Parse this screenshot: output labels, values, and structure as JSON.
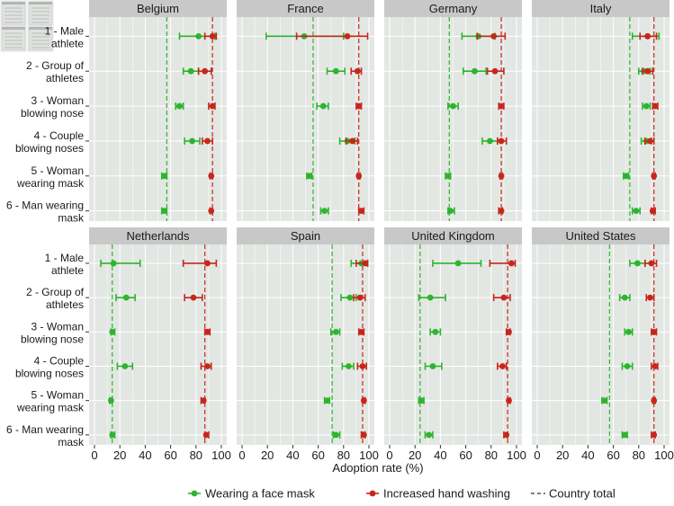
{
  "chart_data": {
    "type": "scatter",
    "title": "",
    "xlabel": "Adoption rate (%)",
    "ylabel": "",
    "xlim": [
      0,
      100
    ],
    "xticks": [
      0,
      20,
      40,
      60,
      80,
      100
    ],
    "categories": [
      "1 - Male athlete",
      "2 - Group of athletes",
      "3 - Woman blowing nose",
      "4 - Couple blowing noses",
      "5 - Woman wearing mask",
      "6 - Man wearing mask"
    ],
    "category_lines": [
      [
        "1 - Male",
        "athlete"
      ],
      [
        "2 - Group of",
        "athletes"
      ],
      [
        "3 - Woman",
        "blowing nose"
      ],
      [
        "4 - Couple",
        "blowing noses"
      ],
      [
        "5 - Woman",
        "wearing mask"
      ],
      [
        "6 - Man wearing",
        "mask"
      ]
    ],
    "legend": [
      {
        "label": "Wearing a face mask",
        "color": "#2db52d",
        "kind": "point"
      },
      {
        "label": "Increased hand washing",
        "color": "#c8261c",
        "kind": "point"
      },
      {
        "label": "Country total",
        "color": "#333333",
        "kind": "dashed"
      }
    ],
    "legend_position": "bottom",
    "colors": {
      "mask": "#2db52d",
      "hand": "#c8261c"
    },
    "panels": [
      {
        "country": "Belgium",
        "mask_total": 57,
        "hand_total": 93,
        "mask": [
          [
            82,
            67,
            95
          ],
          [
            76,
            70,
            82
          ],
          [
            67,
            64,
            70
          ],
          [
            77,
            71,
            83
          ],
          [
            55,
            53,
            57
          ],
          [
            55,
            53,
            57
          ]
        ],
        "hand": [
          [
            93,
            87,
            96
          ],
          [
            87,
            82,
            92
          ],
          [
            93,
            90,
            95
          ],
          [
            89,
            85,
            93
          ],
          [
            92,
            91,
            93
          ],
          [
            92,
            91,
            93
          ]
        ]
      },
      {
        "country": "France",
        "mask_total": 56,
        "hand_total": 92,
        "mask": [
          [
            49,
            19,
            80
          ],
          [
            74,
            67,
            81
          ],
          [
            64,
            59,
            68
          ],
          [
            83,
            77,
            89
          ],
          [
            53,
            51,
            55
          ],
          [
            65,
            62,
            68
          ]
        ],
        "hand": [
          [
            83,
            43,
            99
          ],
          [
            91,
            86,
            94
          ],
          [
            92,
            90,
            94
          ],
          [
            87,
            82,
            91
          ],
          [
            92,
            91,
            93
          ],
          [
            94,
            92,
            96
          ]
        ]
      },
      {
        "country": "Germany",
        "mask_total": 47,
        "hand_total": 88,
        "mask": [
          [
            70,
            57,
            83
          ],
          [
            67,
            58,
            76
          ],
          [
            50,
            46,
            54
          ],
          [
            79,
            73,
            85
          ],
          [
            46,
            44,
            48
          ],
          [
            48,
            46,
            51
          ]
        ],
        "hand": [
          [
            82,
            69,
            91
          ],
          [
            83,
            77,
            90
          ],
          [
            88,
            86,
            90
          ],
          [
            88,
            85,
            92
          ],
          [
            88,
            87,
            89
          ],
          [
            88,
            86,
            89
          ]
        ]
      },
      {
        "country": "Italy",
        "mask_total": 73,
        "hand_total": 92,
        "mask": [
          [
            87,
            75,
            96
          ],
          [
            84,
            80,
            89
          ],
          [
            86,
            83,
            89
          ],
          [
            86,
            82,
            90
          ],
          [
            70,
            68,
            72
          ],
          [
            78,
            75,
            81
          ]
        ],
        "hand": [
          [
            87,
            81,
            94
          ],
          [
            87,
            83,
            91
          ],
          [
            93,
            91,
            95
          ],
          [
            89,
            85,
            92
          ],
          [
            92,
            91,
            93
          ],
          [
            91,
            90,
            93
          ]
        ]
      },
      {
        "country": "Netherlands",
        "mask_total": 14,
        "hand_total": 87,
        "mask": [
          [
            15,
            5,
            36
          ],
          [
            25,
            17,
            32
          ],
          [
            14,
            13,
            16
          ],
          [
            24,
            18,
            30
          ],
          [
            13,
            12,
            14
          ],
          [
            14,
            13,
            16
          ]
        ],
        "hand": [
          [
            89,
            70,
            96
          ],
          [
            78,
            71,
            85
          ],
          [
            89,
            87,
            91
          ],
          [
            89,
            84,
            92
          ],
          [
            86,
            84,
            87
          ],
          [
            88,
            87,
            90
          ]
        ]
      },
      {
        "country": "Spain",
        "mask_total": 71,
        "hand_total": 95,
        "mask": [
          [
            94,
            86,
            99
          ],
          [
            85,
            78,
            90
          ],
          [
            74,
            70,
            77
          ],
          [
            84,
            79,
            88
          ],
          [
            67,
            65,
            69
          ],
          [
            74,
            72,
            77
          ]
        ],
        "hand": [
          [
            97,
            90,
            99
          ],
          [
            93,
            88,
            97
          ],
          [
            94,
            92,
            96
          ],
          [
            95,
            91,
            98
          ],
          [
            96,
            95,
            97
          ],
          [
            96,
            94,
            97
          ]
        ]
      },
      {
        "country": "United Kingdom",
        "mask_total": 24,
        "hand_total": 93,
        "mask": [
          [
            54,
            34,
            72
          ],
          [
            32,
            23,
            44
          ],
          [
            36,
            32,
            40
          ],
          [
            34,
            28,
            41
          ],
          [
            25,
            23,
            27
          ],
          [
            31,
            28,
            34
          ]
        ],
        "hand": [
          [
            96,
            79,
            99
          ],
          [
            90,
            82,
            95
          ],
          [
            94,
            92,
            95
          ],
          [
            89,
            85,
            92
          ],
          [
            94,
            93,
            95
          ],
          [
            92,
            90,
            93
          ]
        ]
      },
      {
        "country": "United States",
        "mask_total": 57,
        "hand_total": 92,
        "mask": [
          [
            79,
            73,
            85
          ],
          [
            69,
            65,
            73
          ],
          [
            72,
            69,
            75
          ],
          [
            71,
            67,
            75
          ],
          [
            53,
            51,
            55
          ],
          [
            69,
            67,
            71
          ]
        ],
        "hand": [
          [
            90,
            85,
            94
          ],
          [
            89,
            86,
            92
          ],
          [
            92,
            90,
            94
          ],
          [
            93,
            90,
            95
          ],
          [
            92,
            91,
            93
          ],
          [
            92,
            90,
            93
          ]
        ]
      }
    ]
  }
}
